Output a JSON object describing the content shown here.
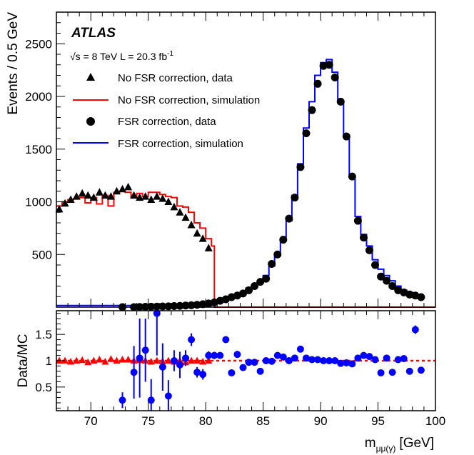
{
  "chart_data": [
    {
      "id": "main",
      "type": "line",
      "ylabel": "Events / 0.5 GeV",
      "xlim": [
        67,
        100
      ],
      "ylim": [
        0,
        2800
      ],
      "yticks": [
        500,
        1000,
        1500,
        2000,
        2500
      ],
      "experiment": "ATLAS",
      "energy_label": "√s = 8 TeV L = 20.3 fb",
      "energy_sup": "-1",
      "legend_placement": "top-left",
      "legend": [
        {
          "key": "nofsr_data",
          "label": "No FSR correction, data",
          "marker": "triangle",
          "color": "#000000"
        },
        {
          "key": "nofsr_sim",
          "label": "No FSR correction, simulation",
          "marker": "line",
          "color": "#ff0000"
        },
        {
          "key": "fsr_data",
          "label": "FSR correction, data",
          "marker": "circle",
          "color": "#000000"
        },
        {
          "key": "fsr_sim",
          "label": "FSR correction, simulation",
          "marker": "line",
          "color": "#0000ff"
        }
      ],
      "series": [
        {
          "name": "No FSR correction, data",
          "kind": "points",
          "marker": "triangle",
          "color": "#000000",
          "x": [
            67.25,
            67.75,
            68.25,
            68.75,
            69.25,
            69.75,
            70.25,
            70.75,
            71.25,
            71.75,
            72.25,
            72.75,
            73.25,
            73.75,
            74.25,
            74.75,
            75.25,
            75.75,
            76.25,
            76.75,
            77.25,
            77.75,
            78.25,
            78.75,
            79.25,
            79.75,
            80.25
          ],
          "y": [
            930,
            985,
            1020,
            1050,
            1080,
            1060,
            1040,
            1090,
            1060,
            1050,
            1100,
            1120,
            1140,
            1060,
            1040,
            1050,
            1020,
            1050,
            1030,
            1000,
            950,
            900,
            850,
            780,
            700,
            650,
            560
          ]
        },
        {
          "name": "No FSR correction, simulation",
          "kind": "step",
          "color": "#ff0000",
          "edges": [
            67,
            67.5,
            68,
            68.5,
            69,
            69.5,
            70,
            70.5,
            71,
            71.5,
            72,
            72.5,
            73,
            73.5,
            74,
            74.5,
            75,
            75.5,
            76,
            76.5,
            77,
            77.5,
            78,
            78.5,
            79,
            79.5,
            80,
            80.5,
            80.75,
            100
          ],
          "y": [
            960,
            1000,
            1020,
            1030,
            1040,
            990,
            1040,
            980,
            1060,
            960,
            1090,
            1100,
            1090,
            1040,
            1080,
            1050,
            1090,
            1090,
            1070,
            1050,
            1040,
            960,
            950,
            900,
            800,
            750,
            650,
            580,
            0
          ]
        },
        {
          "name": "FSR correction, data",
          "kind": "points",
          "marker": "circle",
          "color": "#000000",
          "x": [
            72.75,
            73.75,
            74.25,
            74.75,
            75.25,
            75.75,
            76.25,
            76.75,
            77.25,
            77.75,
            78.25,
            78.75,
            79.25,
            79.75,
            80.25,
            80.75,
            81.25,
            81.75,
            82.25,
            82.75,
            83.25,
            83.75,
            84.25,
            84.75,
            85.25,
            85.75,
            86.25,
            86.75,
            87.25,
            87.75,
            88.25,
            88.75,
            89.25,
            89.75,
            90.25,
            90.75,
            91.25,
            91.75,
            92.25,
            92.75,
            93.25,
            93.75,
            94.25,
            94.75,
            95.25,
            95.75,
            96.25,
            96.75,
            97.25,
            97.75,
            98.25,
            98.75
          ],
          "y": [
            0,
            0,
            2,
            3,
            4,
            5,
            7,
            8,
            10,
            12,
            15,
            18,
            22,
            28,
            35,
            45,
            60,
            75,
            95,
            110,
            130,
            160,
            200,
            240,
            270,
            410,
            500,
            640,
            840,
            1040,
            1330,
            1650,
            1870,
            2120,
            2290,
            2300,
            2180,
            1950,
            1620,
            1240,
            820,
            660,
            540,
            400,
            290,
            250,
            200,
            160,
            140,
            120,
            110,
            95
          ]
        },
        {
          "name": "FSR correction, simulation",
          "kind": "step",
          "color": "#0000ff",
          "edges": [
            67,
            80.5,
            81,
            81.5,
            82,
            82.5,
            83,
            83.5,
            84,
            84.5,
            85,
            85.5,
            86,
            86.5,
            87,
            87.5,
            88,
            88.5,
            89,
            89.5,
            90,
            90.5,
            91,
            91.5,
            92,
            92.5,
            93,
            93.5,
            94,
            94.5,
            95,
            95.5,
            96,
            96.5,
            97,
            97.5,
            98,
            98.5,
            99
          ],
          "y": [
            15,
            50,
            60,
            80,
            95,
            120,
            140,
            180,
            210,
            250,
            300,
            390,
            490,
            630,
            820,
            1060,
            1360,
            1700,
            1950,
            2200,
            2320,
            2350,
            2230,
            1950,
            1620,
            1250,
            860,
            690,
            580,
            450,
            360,
            300,
            250,
            200,
            160,
            140,
            120,
            100
          ]
        }
      ]
    },
    {
      "id": "ratio",
      "type": "scatter",
      "ylabel": "Data/MC",
      "xlabel_main": "m",
      "xlabel_sub": "μμ(γ)",
      "xlabel_unit": "[GeV]",
      "xlim": [
        67,
        100
      ],
      "ylim": [
        0.05,
        1.95
      ],
      "xticks": [
        70,
        75,
        80,
        85,
        90,
        95,
        100
      ],
      "yticks": [
        0.5,
        1,
        1.5
      ],
      "ytick_labels": [
        "0.5",
        "1",
        "1.5"
      ],
      "reference_line": 1,
      "reference_color": "#ff0000",
      "series": [
        {
          "name": "No FSR correction",
          "marker": "triangle",
          "color": "#ff0000",
          "x": [
            67.25,
            67.75,
            68.25,
            68.75,
            69.25,
            69.75,
            70.25,
            70.75,
            71.25,
            71.75,
            72.25,
            72.75,
            73.25,
            73.75,
            74.25,
            74.75,
            75.25,
            75.75,
            76.25,
            76.75,
            77.25,
            77.75,
            78.25,
            78.75,
            79.25,
            79.75,
            80.25
          ],
          "y": [
            1.0,
            1.0,
            0.98,
            1.0,
            1.01,
            0.97,
            1.0,
            1.02,
            0.98,
            1.03,
            1.0,
            1.02,
            1.02,
            1.0,
            1.01,
            1.0,
            0.98,
            1.0,
            0.99,
            1.0,
            0.98,
            1.0,
            0.97,
            1.0,
            1.0,
            0.98,
            1.0
          ],
          "err": [
            0.03,
            0.03,
            0.03,
            0.03,
            0.03,
            0.03,
            0.03,
            0.03,
            0.03,
            0.03,
            0.03,
            0.03,
            0.03,
            0.03,
            0.03,
            0.03,
            0.03,
            0.03,
            0.03,
            0.03,
            0.03,
            0.03,
            0.03,
            0.03,
            0.03,
            0.04,
            0.04
          ]
        },
        {
          "name": "FSR correction",
          "marker": "circle",
          "color": "#0000ff",
          "x": [
            72.75,
            73.75,
            74.25,
            74.75,
            75.25,
            75.75,
            76.25,
            76.75,
            77.25,
            77.75,
            78.25,
            78.75,
            79.25,
            79.75,
            80.25,
            80.75,
            81.25,
            81.75,
            82.25,
            82.75,
            83.25,
            83.75,
            84.25,
            84.75,
            85.25,
            85.75,
            86.25,
            86.75,
            87.25,
            87.75,
            88.25,
            88.75,
            89.25,
            89.75,
            90.25,
            90.75,
            91.25,
            91.75,
            92.25,
            92.75,
            93.25,
            93.75,
            94.25,
            94.75,
            95.25,
            95.75,
            96.25,
            96.75,
            97.25,
            97.75,
            98.25,
            98.75
          ],
          "y": [
            0.25,
            0.78,
            1.05,
            1.2,
            0.25,
            1.9,
            0.88,
            0.33,
            1.0,
            0.92,
            1.05,
            1.4,
            0.78,
            0.74,
            1.1,
            1.1,
            1.1,
            1.4,
            0.77,
            1.12,
            0.87,
            0.97,
            0.97,
            0.8,
            1.0,
            0.99,
            1.1,
            1.07,
            1.0,
            1.05,
            1.22,
            1.05,
            1.02,
            1.02,
            1.0,
            1.0,
            1.0,
            0.95,
            0.96,
            0.94,
            1.05,
            1.1,
            1.08,
            1.02,
            0.77,
            1.05,
            0.78,
            1.02,
            1.04,
            0.8,
            1.59,
            0.82
          ],
          "err": [
            0.15,
            0.5,
            0.75,
            0.6,
            0.4,
            0.8,
            0.45,
            0.3,
            0.2,
            0.25,
            0.15,
            0.12,
            0.1,
            0.1,
            0.08,
            0.07,
            0.06,
            0.05,
            0.05,
            0.04,
            0.04,
            0.03,
            0.03,
            0.03,
            0.02,
            0.02,
            0.02,
            0.02,
            0.02,
            0.02,
            0.02,
            0.02,
            0.02,
            0.02,
            0.02,
            0.02,
            0.02,
            0.02,
            0.02,
            0.02,
            0.02,
            0.02,
            0.02,
            0.02,
            0.03,
            0.03,
            0.03,
            0.04,
            0.04,
            0.05,
            0.08,
            0.06
          ]
        }
      ]
    }
  ]
}
